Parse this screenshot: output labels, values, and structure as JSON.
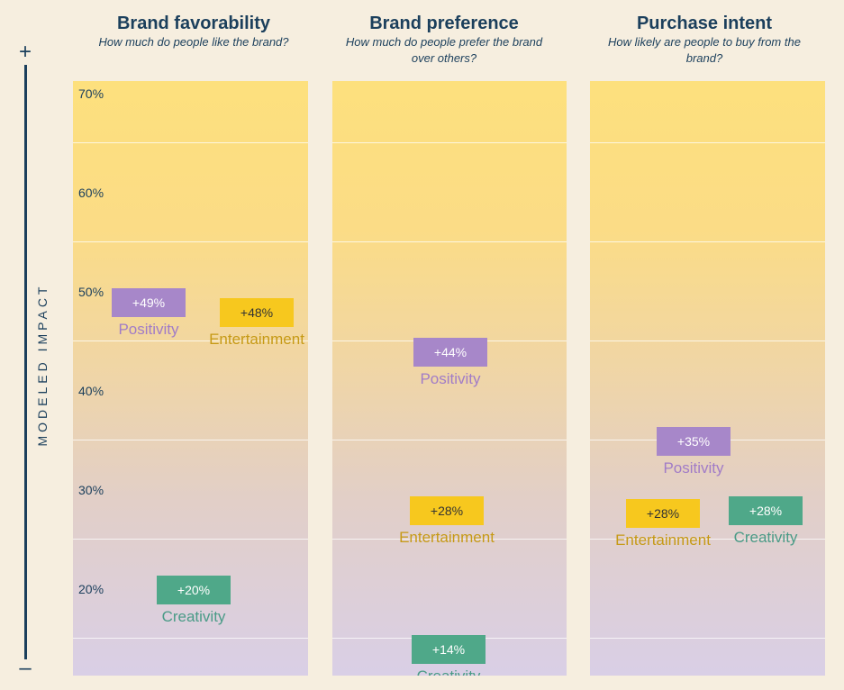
{
  "axis": {
    "plus": "+",
    "minus": "–",
    "label": "MODELED IMPACT"
  },
  "chart_data": [
    {
      "type": "scatter",
      "title": "Brand favorability",
      "subtitle": "How much do people like the brand?",
      "ylim": [
        10,
        75
      ],
      "yticks": [
        "70%",
        "60%",
        "50%",
        "40%",
        "30%",
        "20%"
      ],
      "points": [
        {
          "name": "Positivity",
          "value": 49,
          "label": "+49%",
          "color": "#a787c9"
        },
        {
          "name": "Entertainment",
          "value": 48,
          "label": "+48%",
          "color": "#f7c81e"
        },
        {
          "name": "Creativity",
          "value": 20,
          "label": "+20%",
          "color": "#4fa889"
        }
      ]
    },
    {
      "type": "scatter",
      "title": "Brand preference",
      "subtitle": "How much do people prefer the brand over others?",
      "ylim": [
        10,
        75
      ],
      "points": [
        {
          "name": "Positivity",
          "value": 44,
          "label": "+44%",
          "color": "#a787c9"
        },
        {
          "name": "Entertainment",
          "value": 28,
          "label": "+28%",
          "color": "#f7c81e"
        },
        {
          "name": "Creativity",
          "value": 14,
          "label": "+14%",
          "color": "#4fa889"
        }
      ]
    },
    {
      "type": "scatter",
      "title": "Purchase intent",
      "subtitle": "How likely are people to buy from the brand?",
      "ylim": [
        10,
        75
      ],
      "points": [
        {
          "name": "Positivity",
          "value": 35,
          "label": "+35%",
          "color": "#a787c9"
        },
        {
          "name": "Entertainment",
          "value": 28,
          "label": "+28%",
          "color": "#f7c81e"
        },
        {
          "name": "Creativity",
          "value": 28,
          "label": "+28%",
          "color": "#4fa889"
        }
      ]
    }
  ]
}
